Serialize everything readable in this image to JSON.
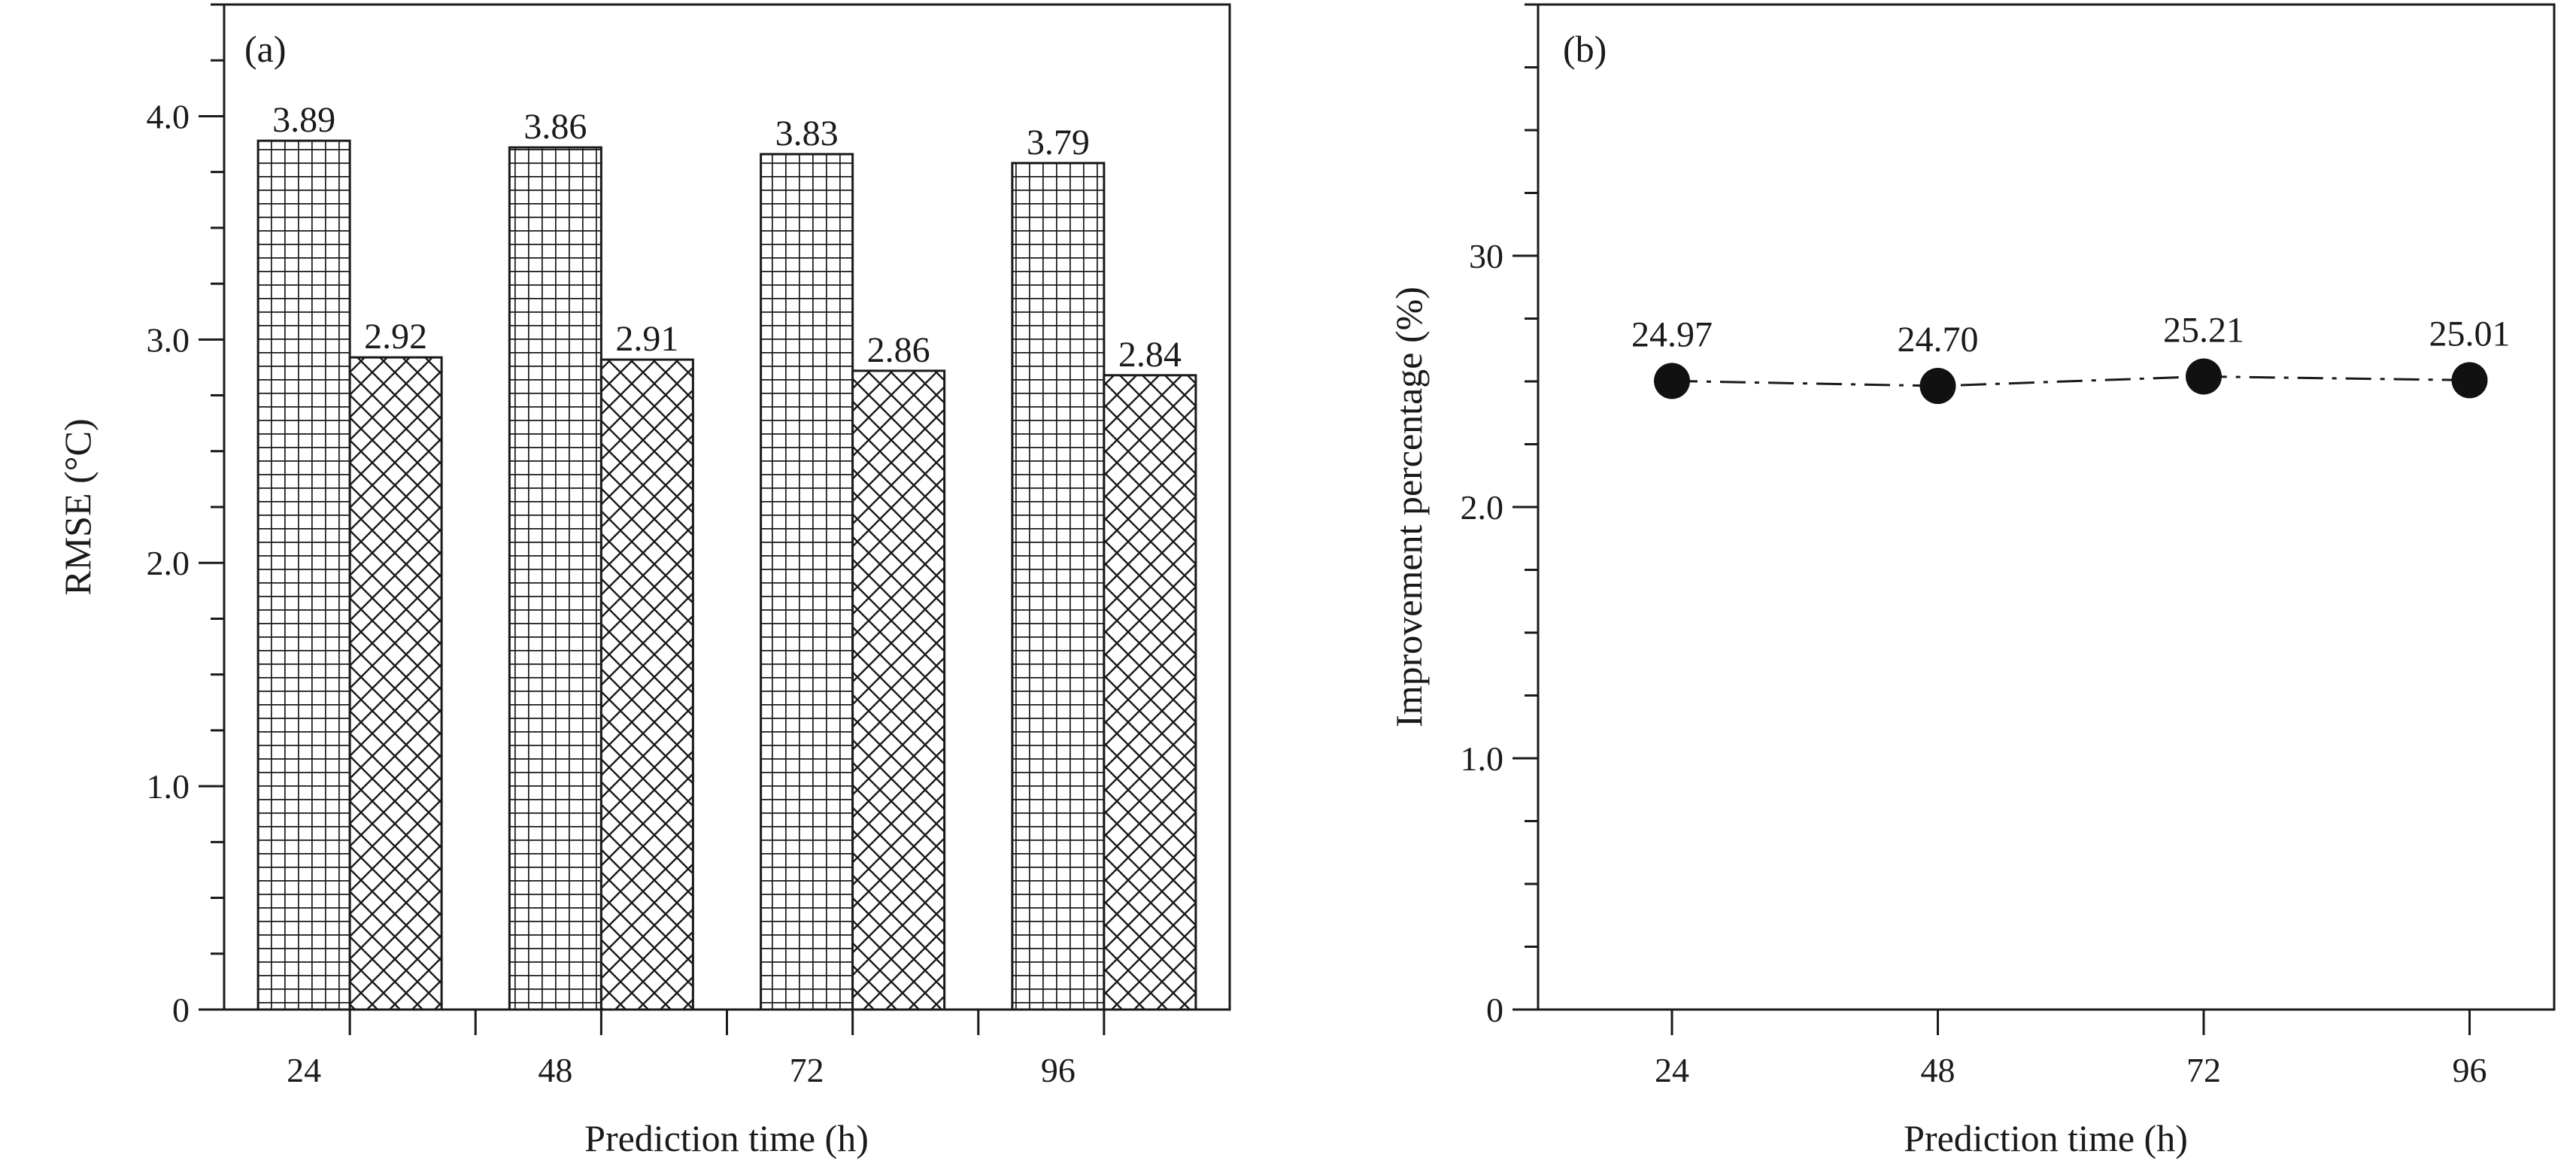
{
  "chart_data": [
    {
      "type": "bar",
      "panel_label": "(a)",
      "categories": [
        "24",
        "48",
        "72",
        "96"
      ],
      "series": [
        {
          "values": [
            3.89,
            3.86,
            3.83,
            3.79
          ],
          "pattern": "grid"
        },
        {
          "values": [
            2.92,
            2.91,
            2.86,
            2.84
          ],
          "pattern": "crosshatch"
        }
      ],
      "data_labels": [
        [
          "3.89",
          "3.86",
          "3.83",
          "3.79"
        ],
        [
          "2.92",
          "2.91",
          "2.86",
          "2.84"
        ]
      ],
      "xlabel": "Prediction time (h)",
      "ylabel": "RMSE (°C)",
      "ylim": [
        0,
        4.5
      ],
      "yticks": [
        0,
        1.0,
        2.0,
        3.0,
        4.0
      ],
      "ytick_labels": [
        "0",
        "1.0",
        "2.0",
        "3.0",
        "4.0"
      ],
      "grid": false
    },
    {
      "type": "line",
      "panel_label": "(b)",
      "x": [
        "24",
        "48",
        "72",
        "96"
      ],
      "values": [
        24.97,
        24.7,
        25.21,
        25.01
      ],
      "data_labels": [
        "24.97",
        "24.70",
        "25.21",
        "25.01"
      ],
      "xlabel": "Prediction time (h)",
      "ylabel": "Improvement percentage (%)",
      "ytick_labels": [
        "0",
        "1.0",
        "2.0",
        "30"
      ],
      "line_style": "dash-dot",
      "marker": "filled-circle",
      "grid": false
    }
  ]
}
